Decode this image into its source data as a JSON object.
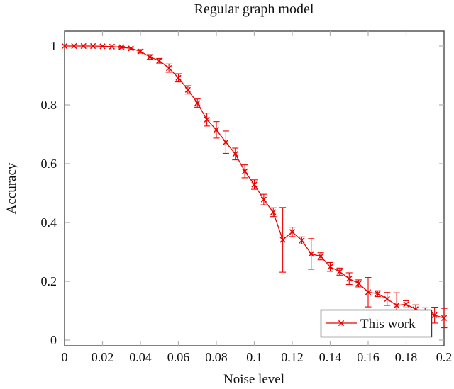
{
  "figure": {
    "background": "#ffffff",
    "frame_color": "#4a4a4a",
    "tick_color": "#b0b0b0",
    "text_color": "#111111"
  },
  "chart_data": {
    "type": "line",
    "title": "Regular graph model",
    "xlabel": "Noise level",
    "ylabel": "Accuracy",
    "xlim": [
      0,
      0.2
    ],
    "ylim": [
      0,
      1
    ],
    "grid": false,
    "legend_position": "lower right",
    "x_ticks": [
      0,
      0.02,
      0.04,
      0.06,
      0.08,
      0.1,
      0.12,
      0.14,
      0.16,
      0.18,
      0.2
    ],
    "x_tick_labels": [
      "0",
      "0.02",
      "0.04",
      "0.06",
      "0.08",
      "0.1",
      "0.12",
      "0.14",
      "0.16",
      "0.18",
      "0.2"
    ],
    "y_ticks": [
      0,
      0.2,
      0.4,
      0.6,
      0.8,
      1
    ],
    "y_tick_labels": [
      "0",
      "0.2",
      "0.4",
      "0.6",
      "0.8",
      "1"
    ],
    "series": [
      {
        "name": "This work",
        "color": "#ee0000",
        "marker": "x",
        "x": [
          0,
          0.005,
          0.01,
          0.015,
          0.02,
          0.025,
          0.03,
          0.035,
          0.04,
          0.045,
          0.05,
          0.055,
          0.06,
          0.065,
          0.07,
          0.075,
          0.08,
          0.085,
          0.09,
          0.095,
          0.1,
          0.105,
          0.11,
          0.115,
          0.12,
          0.125,
          0.13,
          0.135,
          0.14,
          0.145,
          0.15,
          0.155,
          0.16,
          0.165,
          0.17,
          0.175,
          0.18,
          0.185,
          0.19,
          0.195,
          0.2
        ],
        "y": [
          1.0,
          1.0,
          1.0,
          1.0,
          0.999,
          0.998,
          0.996,
          0.992,
          0.982,
          0.963,
          0.95,
          0.925,
          0.892,
          0.851,
          0.806,
          0.75,
          0.715,
          0.673,
          0.633,
          0.574,
          0.529,
          0.478,
          0.435,
          0.341,
          0.368,
          0.339,
          0.293,
          0.285,
          0.249,
          0.233,
          0.209,
          0.193,
          0.163,
          0.158,
          0.14,
          0.118,
          0.122,
          0.105,
          0.095,
          0.085,
          0.075
        ],
        "y_err": [
          0,
          0,
          0,
          0,
          0,
          0,
          0.003,
          0.004,
          0.006,
          0.008,
          0.008,
          0.014,
          0.014,
          0.014,
          0.014,
          0.022,
          0.028,
          0.038,
          0.02,
          0.022,
          0.016,
          0.018,
          0.015,
          0.11,
          0.016,
          0.012,
          0.052,
          0.012,
          0.015,
          0.012,
          0.02,
          0.012,
          0.05,
          0.01,
          0.022,
          0.043,
          0.012,
          0.015,
          0.015,
          0.027,
          0.033
        ]
      }
    ]
  }
}
